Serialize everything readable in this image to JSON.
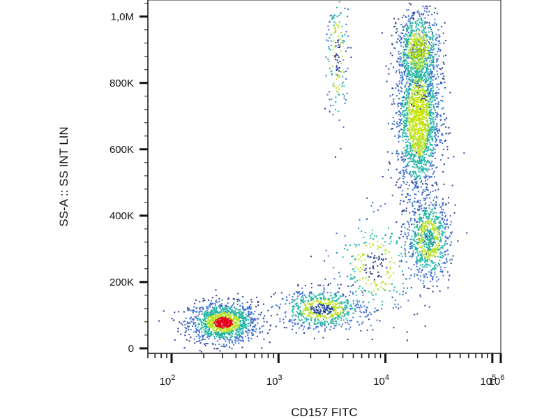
{
  "chart_data": {
    "type": "scatter",
    "title": "",
    "xlabel": "CD157 FITC",
    "ylabel": "SS-A :: SS INT LIN",
    "x_scale": "log",
    "y_scale": "linear",
    "xlim": [
      60,
      120000
    ],
    "ylim": [
      -15000,
      1050000
    ],
    "x_ticks": [
      {
        "value": 100,
        "base": "10",
        "exp": "2"
      },
      {
        "value": 1000,
        "base": "10",
        "exp": "3"
      },
      {
        "value": 10000,
        "base": "10",
        "exp": "4"
      },
      {
        "value": 100000,
        "base": "10",
        "exp": "5"
      },
      {
        "value": 1000000,
        "base": "10",
        "exp": "6"
      }
    ],
    "y_ticks": [
      {
        "value": 0,
        "label": "0"
      },
      {
        "value": 200000,
        "label": "200K"
      },
      {
        "value": 400000,
        "label": "400K"
      },
      {
        "value": 600000,
        "label": "600K"
      },
      {
        "value": 800000,
        "label": "800K"
      },
      {
        "value": 1000000,
        "label": "1,0M"
      }
    ],
    "grid": false,
    "color_mapping": "density (blue low → green → yellow → red high)",
    "populations": [
      {
        "x_center": 300,
        "x_log_sd": 0.16,
        "y_center": 80000,
        "y_sd": 30000,
        "events": 1300,
        "peak_color": "#e4001b"
      },
      {
        "x_center": 20000,
        "x_log_sd": 0.1,
        "y_center": 700000,
        "y_sd": 120000,
        "events": 2000,
        "peak_color": "#c8e400"
      },
      {
        "x_center": 20000,
        "x_log_sd": 0.1,
        "y_center": 900000,
        "y_sd": 60000,
        "events": 700,
        "peak_color": "#9fd000"
      },
      {
        "x_center": 25000,
        "x_log_sd": 0.1,
        "y_center": 330000,
        "y_sd": 60000,
        "events": 800,
        "peak_color": "#2fb0a0"
      },
      {
        "x_center": 2500,
        "x_log_sd": 0.2,
        "y_center": 120000,
        "y_sd": 30000,
        "events": 700,
        "peak_color": "#2a4a9a"
      },
      {
        "x_center": 3500,
        "x_log_sd": 0.05,
        "y_center": 880000,
        "y_sd": 110000,
        "events": 180,
        "peak_color": "#2a3a8a"
      },
      {
        "x_center": 8000,
        "x_log_sd": 0.2,
        "y_center": 250000,
        "y_sd": 80000,
        "events": 300,
        "peak_color": "#2a3a8a"
      }
    ]
  },
  "colors": {
    "sparse": "#2b3a8f",
    "low": "#3d6fd1",
    "mid": "#22b5a6",
    "high": "#b9e02a",
    "peak": "#e8221b",
    "axis": "#111111"
  }
}
